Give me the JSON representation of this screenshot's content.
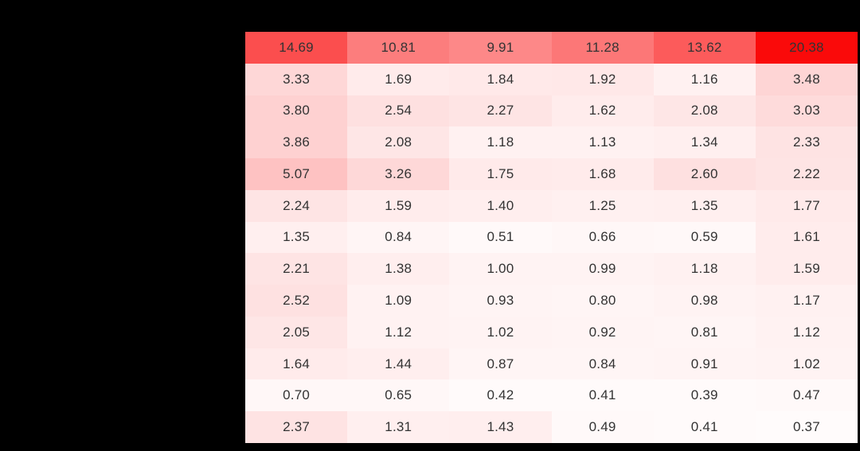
{
  "canvas": {
    "background": "#000000"
  },
  "chart_data": {
    "type": "heatmap",
    "rows": 13,
    "cols": 6,
    "values": [
      [
        14.69,
        10.81,
        9.91,
        11.28,
        13.62,
        20.38
      ],
      [
        3.33,
        1.69,
        1.84,
        1.92,
        1.16,
        3.48
      ],
      [
        3.8,
        2.54,
        2.27,
        1.62,
        2.08,
        3.03
      ],
      [
        3.86,
        2.08,
        1.18,
        1.13,
        1.34,
        2.33
      ],
      [
        5.07,
        3.26,
        1.75,
        1.68,
        2.6,
        2.22
      ],
      [
        2.24,
        1.59,
        1.4,
        1.25,
        1.35,
        1.77
      ],
      [
        1.35,
        0.84,
        0.51,
        0.66,
        0.59,
        1.61
      ],
      [
        2.21,
        1.38,
        1.0,
        0.99,
        1.18,
        1.59
      ],
      [
        2.52,
        1.09,
        0.93,
        0.8,
        0.98,
        1.17
      ],
      [
        2.05,
        1.12,
        1.02,
        0.92,
        0.81,
        1.12
      ],
      [
        1.64,
        1.44,
        0.87,
        0.84,
        0.91,
        1.02
      ],
      [
        0.7,
        0.65,
        0.42,
        0.41,
        0.39,
        0.47
      ],
      [
        2.37,
        1.31,
        1.43,
        0.49,
        0.41,
        0.37
      ]
    ],
    "value_format_decimals": 2,
    "colormap": {
      "low_color": "#ffffff",
      "high_color": "#fa0a0a",
      "vmin": 0,
      "vmax": 20.38
    },
    "text_color": "#333333",
    "grid": false,
    "legend": false,
    "title": "",
    "xlabel": "",
    "ylabel": ""
  }
}
